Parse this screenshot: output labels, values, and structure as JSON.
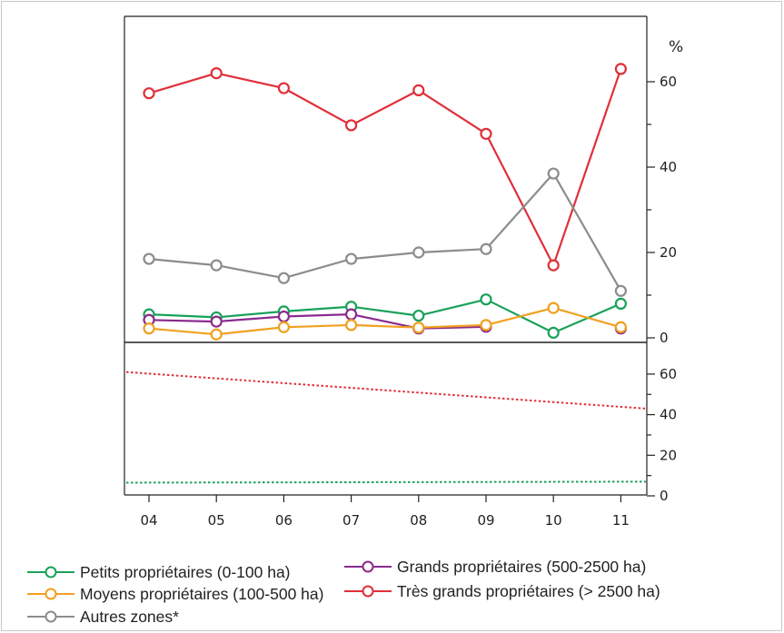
{
  "chart_data": {
    "type": "line",
    "unit_label": "%",
    "categories": [
      "04",
      "05",
      "06",
      "07",
      "08",
      "09",
      "10",
      "11"
    ],
    "top_panel": {
      "ylim": [
        0,
        70
      ],
      "yticks": [
        "0",
        "20",
        "40",
        "60"
      ],
      "series": [
        {
          "key": "petits",
          "color": "#1aa15a",
          "values": [
            5.5,
            4.8,
            6.2,
            7.3,
            5.2,
            9.0,
            1.2,
            8.0
          ]
        },
        {
          "key": "grands",
          "color": "#8b2a8e",
          "values": [
            4.2,
            3.8,
            5.0,
            5.5,
            2.2,
            2.6,
            null,
            2.2
          ]
        },
        {
          "key": "moyens",
          "color": "#f0a020",
          "values": [
            2.2,
            0.8,
            2.5,
            3.0,
            2.4,
            3.0,
            7.0,
            2.5
          ]
        },
        {
          "key": "tres_grands",
          "color": "#e0303a",
          "values": [
            57.3,
            62.0,
            58.5,
            49.8,
            58.0,
            47.8,
            17.0,
            63.0
          ]
        },
        {
          "key": "autres",
          "color": "#8c8c8c",
          "values": [
            18.5,
            17.0,
            14.0,
            18.5,
            20.0,
            20.8,
            38.5,
            11.0
          ]
        }
      ]
    },
    "bottom_panel": {
      "ylim": [
        0,
        70
      ],
      "yticks": [
        "0",
        "20",
        "40",
        "60"
      ],
      "trends": [
        {
          "color": "#e0303a",
          "start": 61,
          "end": 43
        },
        {
          "color": "#1aa15a",
          "start": 6.5,
          "end": 7.0
        }
      ]
    },
    "legend": [
      {
        "label": "Petits propriétaires (0-100 ha)",
        "color": "#1aa15a"
      },
      {
        "label": "Grands propriétaires (500-2500 ha)",
        "color": "#8b2a8e"
      },
      {
        "label": "Moyens propriétaires (100-500 ha)",
        "color": "#f0a020"
      },
      {
        "label": "Très grands propriétaires (> 2500 ha)",
        "color": "#e0303a"
      },
      {
        "label": "Autres zones*",
        "color": "#8c8c8c"
      }
    ]
  }
}
